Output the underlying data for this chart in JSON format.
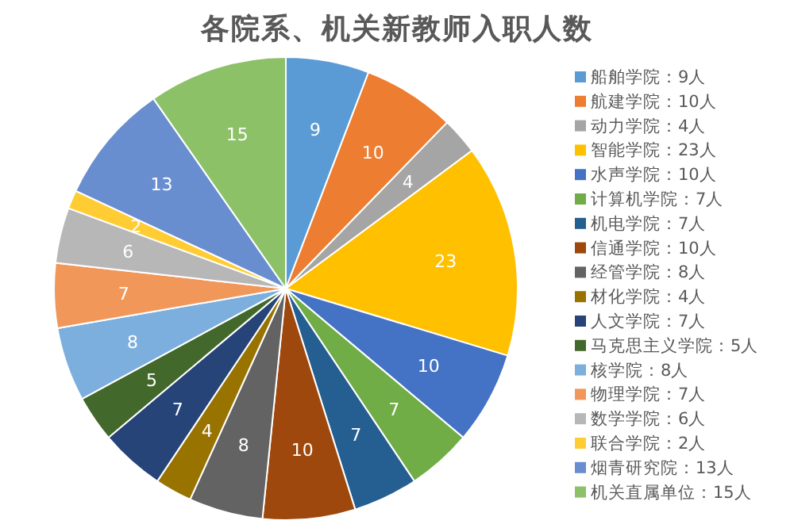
{
  "chart_data": {
    "type": "pie",
    "title": "各院系、机关新教师入职人数",
    "categories": [
      "船舶学院：9人",
      "航建学院：10人",
      "动力学院：4人",
      "智能学院：23人",
      "水声学院：10人",
      "计算机学院：7人",
      "机电学院：7人",
      "信通学院：10人",
      "经管学院：8人",
      "材化学院：4人",
      "人文学院：7人",
      "马克思主义学院：5人",
      "核学院：8人",
      "物理学院：7人",
      "数学学院：6人",
      "联合学院：2人",
      "烟青研究院：13人",
      "机关直属单位：15人"
    ],
    "values": [
      9,
      10,
      4,
      23,
      10,
      7,
      7,
      10,
      8,
      4,
      7,
      5,
      8,
      7,
      6,
      2,
      13,
      15
    ],
    "colors": [
      "#5b9bd5",
      "#ed7d31",
      "#a5a5a5",
      "#ffc000",
      "#4472c4",
      "#70ad47",
      "#255e91",
      "#9e480e",
      "#636363",
      "#997300",
      "#264478",
      "#43682b",
      "#7cafdd",
      "#f1975a",
      "#b7b7b7",
      "#ffcd33",
      "#698ed0",
      "#8cc168"
    ],
    "data_labels": true,
    "legend": "right"
  }
}
